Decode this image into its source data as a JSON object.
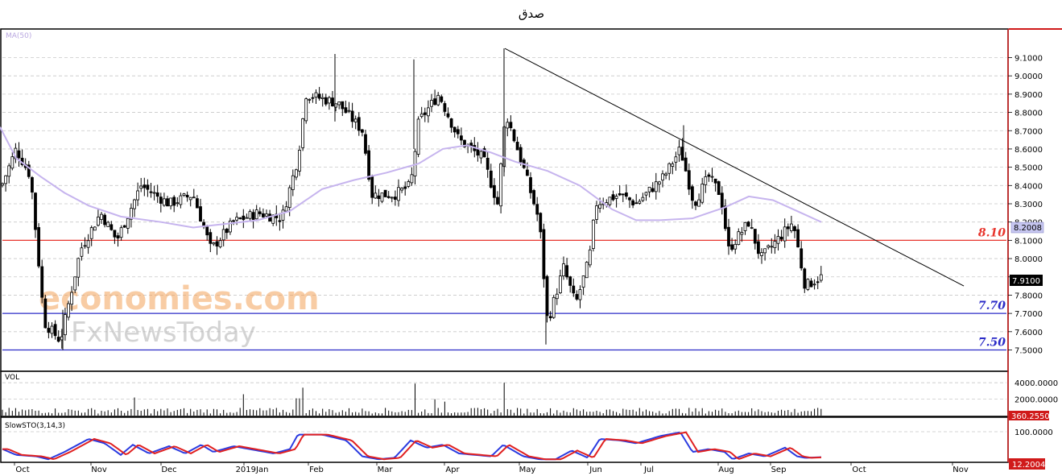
{
  "chart_data": {
    "type": "candlestick",
    "title": "صدق",
    "price_panel": {
      "indicator_label": "MA(50)",
      "ylim": [
        7.44,
        9.21
      ],
      "y_ticks": [
        "9.1000",
        "9.0000",
        "8.9000",
        "8.8000",
        "8.7000",
        "8.6000",
        "8.5000",
        "8.4000",
        "8.3000",
        "8.2000",
        "8.1000",
        "8.0000",
        "7.9000",
        "7.8000",
        "7.7000",
        "7.6000",
        "7.5000"
      ],
      "current_price_label": "7.9100",
      "ma_value_label": "8.2008",
      "levels": [
        {
          "label": "8.10",
          "value": 8.1,
          "color": "#e8352d"
        },
        {
          "label": "7.70",
          "value": 7.7,
          "color": "#2b2bc7"
        },
        {
          "label": "7.50",
          "value": 7.5,
          "color": "#2b2bc7"
        }
      ],
      "trendline": {
        "start": [
          "2019-04-22",
          9.15
        ],
        "end": [
          "2019-11-02",
          7.85
        ],
        "color": "#000000"
      },
      "ma50": [
        [
          0,
          8.72
        ],
        [
          20,
          8.55
        ],
        [
          50,
          8.45
        ],
        [
          80,
          8.36
        ],
        [
          110,
          8.29
        ],
        [
          150,
          8.23
        ],
        [
          200,
          8.2
        ],
        [
          240,
          8.17
        ],
        [
          280,
          8.19
        ],
        [
          320,
          8.21
        ],
        [
          360,
          8.26
        ],
        [
          400,
          8.38
        ],
        [
          440,
          8.43
        ],
        [
          480,
          8.47
        ],
        [
          520,
          8.52
        ],
        [
          550,
          8.6
        ],
        [
          580,
          8.62
        ],
        [
          610,
          8.58
        ],
        [
          640,
          8.53
        ],
        [
          680,
          8.48
        ],
        [
          720,
          8.4
        ],
        [
          760,
          8.27
        ],
        [
          790,
          8.21
        ],
        [
          820,
          8.21
        ],
        [
          860,
          8.22
        ],
        [
          900,
          8.28
        ],
        [
          930,
          8.34
        ],
        [
          960,
          8.32
        ],
        [
          990,
          8.26
        ],
        [
          1020,
          8.2
        ]
      ]
    },
    "volume_panel": {
      "label": "VOL",
      "y_ticks": [
        "4000.0000",
        "2000.0000"
      ],
      "last_value_label": "360.2550",
      "ylim": [
        0,
        5000
      ]
    },
    "stoch_panel": {
      "label": "SlowSTO(3,14,3)",
      "y_ticks": [
        "100.0000"
      ],
      "last_value_label": "12.2004",
      "ylim": [
        0,
        110
      ]
    },
    "x_labels": [
      "Oct",
      "Nov",
      "Dec",
      "2019Jan",
      "Feb",
      "Mar",
      "Apr",
      "May",
      "Jun",
      "Jul",
      "Aug",
      "Sep",
      "Oct",
      "Nov"
    ],
    "colors": {
      "up": "#ffffff",
      "down": "#000000",
      "ma": "#c6b4ee",
      "stoch_k": "#2a3ae0",
      "stoch_d": "#e02020",
      "axis_border": "#d01a1a",
      "label_bg_dark": "#000000",
      "label_bg_red": "#d01a1a",
      "ma_label_bg": "#c6c6f0"
    },
    "watermark": [
      "economies.com",
      "FxNewsToday"
    ]
  }
}
